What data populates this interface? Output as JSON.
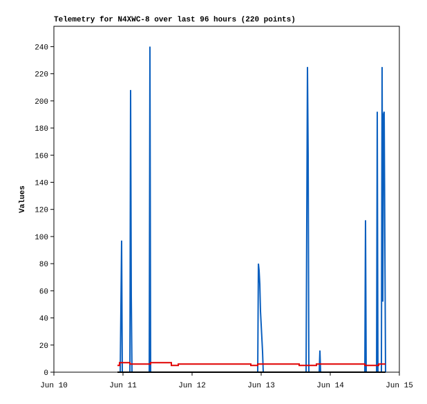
{
  "chart_data": {
    "type": "line",
    "title": "Telemetry for N4XWC-8 over last 96 hours (220 points)",
    "y_label": "Values",
    "xlim": [
      0,
      5
    ],
    "xticks": [
      {
        "value": 0,
        "label": "Jun 10"
      },
      {
        "value": 1,
        "label": "Jun 11"
      },
      {
        "value": 2,
        "label": "Jun 12"
      },
      {
        "value": 3,
        "label": "Jun 13"
      },
      {
        "value": 4,
        "label": "Jun 14"
      },
      {
        "value": 5,
        "label": "Jun 15"
      }
    ],
    "ylim": [
      0,
      255
    ],
    "yticks": [
      0,
      20,
      40,
      60,
      80,
      100,
      120,
      140,
      160,
      180,
      200,
      220,
      240
    ],
    "grid": false,
    "series": [
      {
        "color": "#0a5fbf",
        "x": [
          0.96,
          0.97,
          0.98,
          0.99,
          1.1,
          1.11,
          1.12,
          1.13,
          1.38,
          1.39,
          1.4,
          2.95,
          2.96,
          2.97,
          2.98,
          2.99,
          3.0,
          3.01,
          3.02,
          3.03,
          3.65,
          3.66,
          3.67,
          3.68,
          3.69,
          3.84,
          3.85,
          3.86,
          4.5,
          4.51,
          4.52,
          4.67,
          4.68,
          4.69,
          4.74,
          4.75,
          4.76,
          4.77,
          4.78,
          4.79,
          4.8
        ],
        "values": [
          0,
          48,
          97,
          0,
          0,
          208,
          56,
          0,
          0,
          240,
          0,
          0,
          80,
          75,
          65,
          45,
          35,
          25,
          15,
          0,
          0,
          112,
          225,
          160,
          0,
          0,
          16,
          0,
          0,
          112,
          0,
          0,
          192,
          0,
          0,
          225,
          52,
          190,
          192,
          97,
          0
        ]
      },
      {
        "color": "#e00000",
        "x": [
          0.92,
          0.95,
          0.95,
          1.1,
          1.1,
          1.4,
          1.4,
          1.7,
          1.7,
          1.8,
          1.8,
          2.85,
          2.85,
          2.95,
          2.95,
          3.55,
          3.55,
          3.8,
          3.8,
          4.5,
          4.5,
          4.7,
          4.7,
          4.8
        ],
        "values": [
          5,
          5,
          7,
          7,
          6,
          6,
          7,
          7,
          5,
          5,
          6,
          6,
          5,
          5,
          6,
          6,
          5,
          5,
          6,
          6,
          5,
          5,
          6,
          6
        ]
      },
      {
        "color": "#000000",
        "x": [
          0.92,
          4.8
        ],
        "values": [
          0,
          0
        ]
      }
    ]
  }
}
